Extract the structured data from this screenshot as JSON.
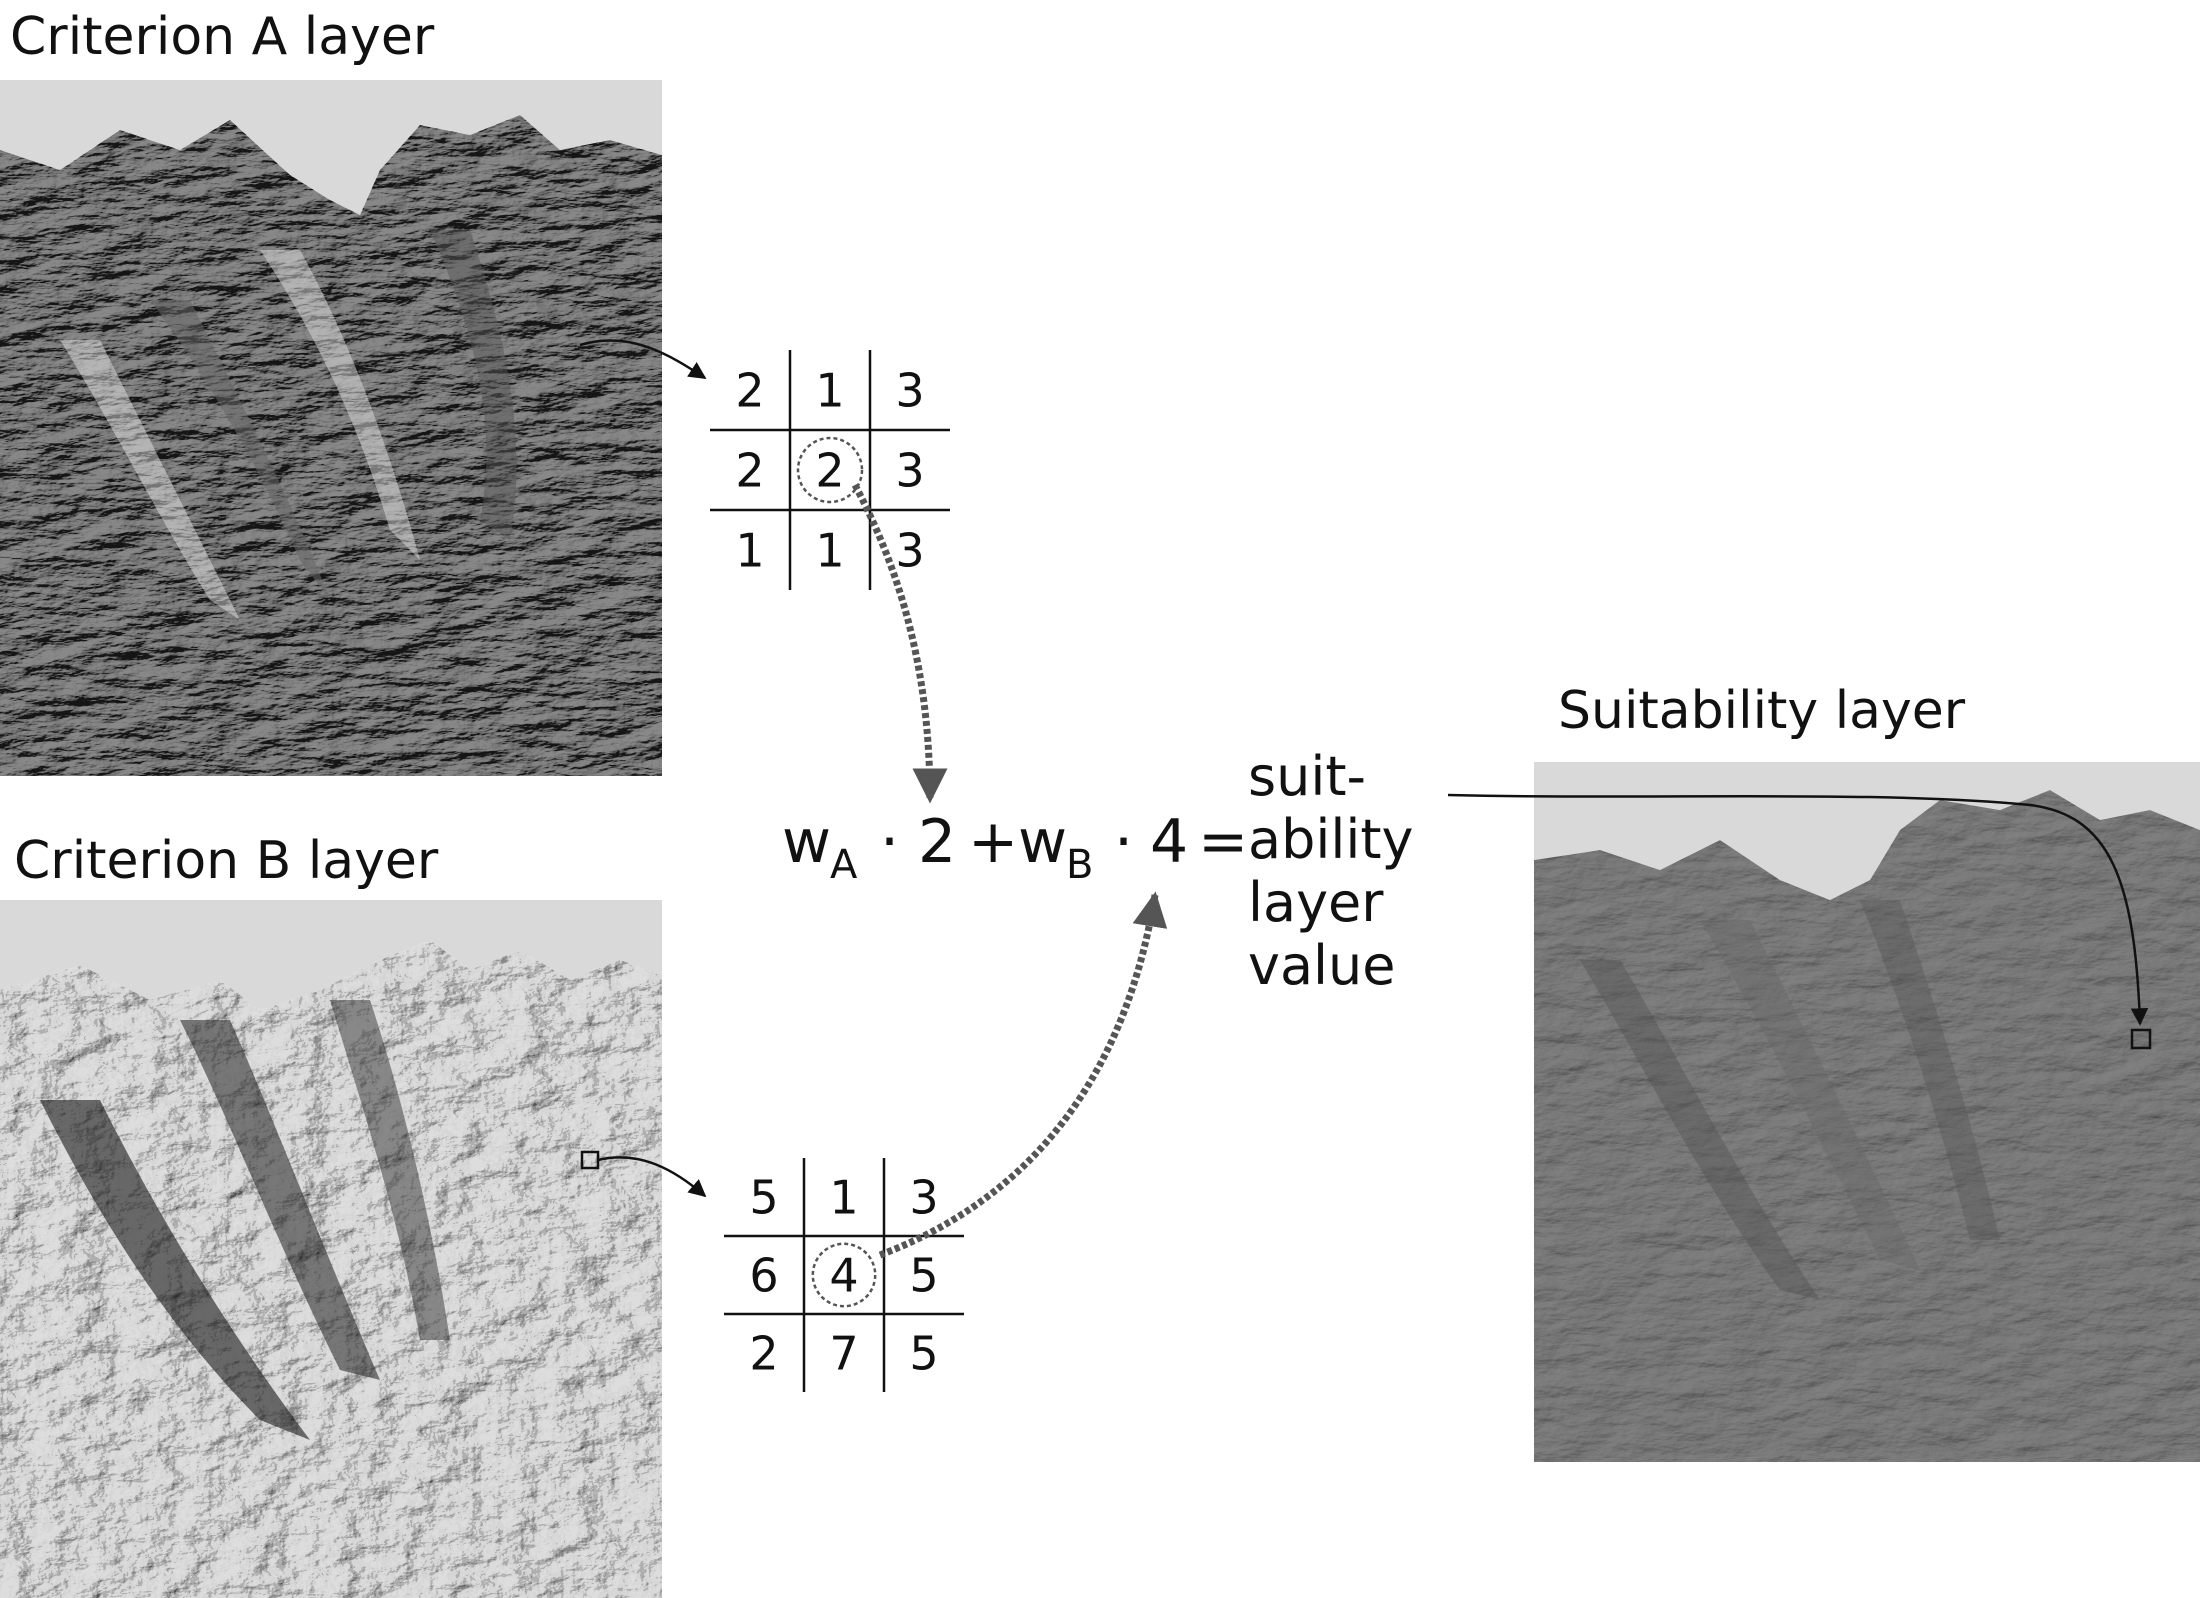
{
  "labels": {
    "criterion_a": "Criterion A layer",
    "criterion_b": "Criterion B layer",
    "suitability": "Suitability layer"
  },
  "grid_a": {
    "cells": [
      [
        "2",
        "1",
        "3"
      ],
      [
        "2",
        "2",
        "3"
      ],
      [
        "1",
        "1",
        "3"
      ]
    ],
    "highlight": [
      1,
      1
    ]
  },
  "grid_b": {
    "cells": [
      [
        "5",
        "1",
        "3"
      ],
      [
        "6",
        "4",
        "5"
      ],
      [
        "2",
        "7",
        "5"
      ]
    ],
    "highlight": [
      1,
      1
    ]
  },
  "formula": {
    "weight_a_base": "w",
    "weight_a_sub": "A",
    "dot_1": "·",
    "value_a": "2",
    "plus": "+",
    "weight_b_base": "w",
    "weight_b_sub": "B",
    "dot_2": "·",
    "value_b": "4",
    "equals": "=",
    "result_lines": [
      "suit-",
      "ability",
      "layer",
      "value"
    ]
  },
  "colors": {
    "background": "#ffffff",
    "frame_gray": "#d9d9d9",
    "arrow_dotted": "#555555",
    "ink": "#111111"
  }
}
